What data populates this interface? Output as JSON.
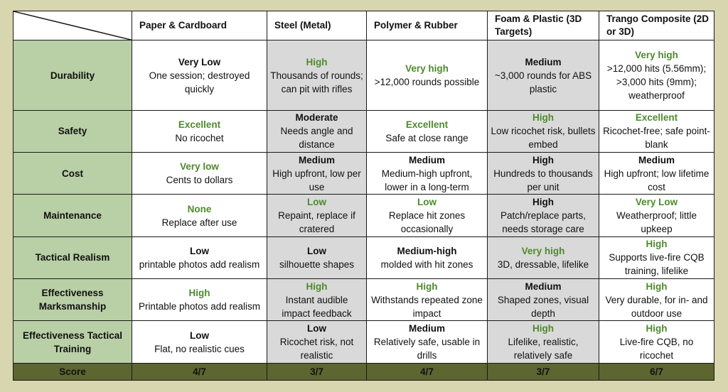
{
  "columns": [
    "Paper & Cardboard",
    "Steel (Metal)",
    "Polymer & Rubber",
    "Foam & Plastic (3D Targets)",
    "Trango Composite (2D or 3D)"
  ],
  "rows": [
    {
      "label": "Durability",
      "cells": [
        {
          "rating": "Very Low",
          "tone": "neutral",
          "desc": "One session; destroyed quickly"
        },
        {
          "rating": "High",
          "tone": "good",
          "desc": "Thousands of rounds; can pit with rifles"
        },
        {
          "rating": "Very high",
          "tone": "good",
          "desc": ">12,000 rounds possible"
        },
        {
          "rating": "Medium",
          "tone": "neutral",
          "desc": "~3,000 rounds for ABS plastic"
        },
        {
          "rating": "Very high",
          "tone": "good",
          "desc": ">12,000 hits (5.56mm); >3,000 hits (9mm); weatherproof"
        }
      ]
    },
    {
      "label": "Safety",
      "cells": [
        {
          "rating": "Excellent",
          "tone": "good",
          "desc": "No ricochet"
        },
        {
          "rating": "Moderate",
          "tone": "neutral",
          "desc": "Needs angle and distance"
        },
        {
          "rating": "Excellent",
          "tone": "good",
          "desc": "Safe at close range"
        },
        {
          "rating": "High",
          "tone": "good",
          "desc": "Low ricochet risk, bullets embed"
        },
        {
          "rating": "Excellent",
          "tone": "good",
          "desc": "Ricochet-free; safe point-blank"
        }
      ]
    },
    {
      "label": "Cost",
      "cells": [
        {
          "rating": "Very low",
          "tone": "good",
          "desc": "Cents to dollars"
        },
        {
          "rating": "Medium",
          "tone": "neutral",
          "desc": "High upfront, low per use"
        },
        {
          "rating": "Medium",
          "tone": "neutral",
          "desc": "Medium-high upfront, lower in a long-term"
        },
        {
          "rating": "High",
          "tone": "neutral",
          "desc": "Hundreds to thousands per unit"
        },
        {
          "rating": "Medium",
          "tone": "neutral",
          "desc": "High upfront; low lifetime cost"
        }
      ]
    },
    {
      "label": "Maintenance",
      "cells": [
        {
          "rating": "None",
          "tone": "good",
          "desc": "Replace after use"
        },
        {
          "rating": "Low",
          "tone": "good",
          "desc": "Repaint, replace if cratered"
        },
        {
          "rating": "Low",
          "tone": "good",
          "desc": "Replace hit zones occasionally"
        },
        {
          "rating": "High",
          "tone": "neutral",
          "desc": "Patch/replace parts, needs storage care"
        },
        {
          "rating": "Very Low",
          "tone": "good",
          "desc": "Weatherproof; little upkeep"
        }
      ]
    },
    {
      "label": "Tactical Realism",
      "cells": [
        {
          "rating": "Low",
          "tone": "neutral",
          "desc": "printable photos add realism"
        },
        {
          "rating": "Low",
          "tone": "neutral",
          "desc": "silhouette shapes"
        },
        {
          "rating": "Medium-high",
          "tone": "neutral",
          "desc": "molded with hit zones"
        },
        {
          "rating": "Very high",
          "tone": "good",
          "desc": "3D, dressable, lifelike"
        },
        {
          "rating": "High",
          "tone": "good",
          "desc": "Supports live-fire CQB training, lifelike"
        }
      ]
    },
    {
      "label": "Effectiveness Marksmanship",
      "cells": [
        {
          "rating": "High",
          "tone": "good",
          "desc": "Printable photos add realism"
        },
        {
          "rating": "High",
          "tone": "good",
          "desc": "Instant audible impact feedback"
        },
        {
          "rating": "High",
          "tone": "good",
          "desc": "Withstands repeated zone impact"
        },
        {
          "rating": "Medium",
          "tone": "neutral",
          "desc": "Shaped zones, visual depth"
        },
        {
          "rating": "High",
          "tone": "good",
          "desc": "Very durable, for in- and outdoor use"
        }
      ]
    },
    {
      "label": "Effectiveness Tactical Training",
      "cells": [
        {
          "rating": "Low",
          "tone": "neutral",
          "desc": "Flat, no realistic cues"
        },
        {
          "rating": "Low",
          "tone": "neutral",
          "desc": "Ricochet risk, not realistic"
        },
        {
          "rating": "Medium",
          "tone": "neutral",
          "desc": "Relatively safe, usable in drills"
        },
        {
          "rating": "High",
          "tone": "good",
          "desc": "Lifelike, realistic, relatively safe"
        },
        {
          "rating": "High",
          "tone": "good",
          "desc": "Live-fire CQB, no ricochet"
        }
      ]
    }
  ],
  "score": {
    "label": "Score",
    "values": [
      "4/7",
      "3/7",
      "4/7",
      "3/7",
      "6/7"
    ]
  },
  "colors": {
    "page_background": "#d8d6ae",
    "row_label_background": "#b9cfa6",
    "score_row_background": "#5d6530",
    "good_rating_text": "#4e8a2d",
    "shaded_column": "#d9d9d9"
  }
}
